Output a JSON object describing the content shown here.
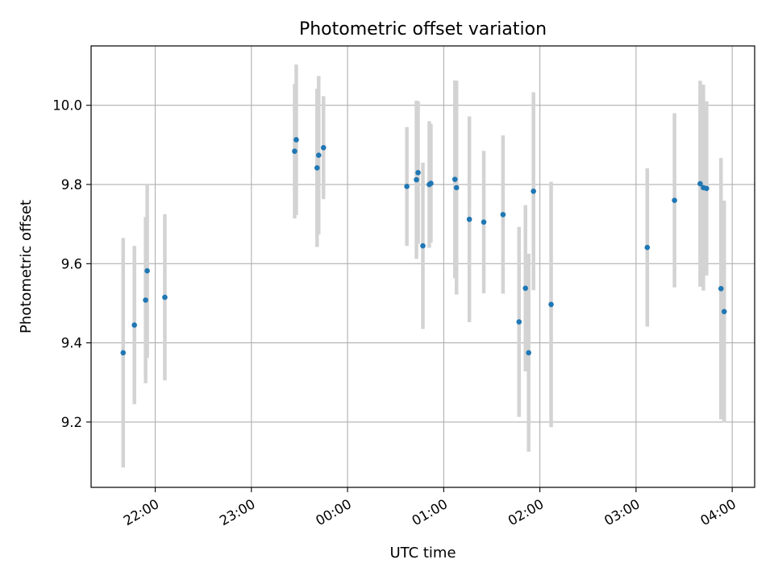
{
  "chart_data": {
    "type": "scatter",
    "title": "Photometric offset variation",
    "xlabel": "UTC time",
    "ylabel": "Photometric offset",
    "x_axis": "time",
    "x_range": [
      "21:20",
      "04:14"
    ],
    "ylim": [
      9.035,
      10.15
    ],
    "grid": true,
    "x_ticks": [
      "22:00",
      "23:00",
      "00:00",
      "01:00",
      "02:00",
      "03:00",
      "04:00"
    ],
    "y_ticks": [
      "9.2",
      "9.4",
      "9.6",
      "9.8",
      "10.0"
    ],
    "colors": {
      "point": "#1f77b4",
      "errorbar": "#d3d3d3",
      "grid": "#b0b0b0"
    },
    "points": [
      {
        "x": "21:40",
        "y": 9.375,
        "err": 0.29
      },
      {
        "x": "21:47",
        "y": 9.445,
        "err": 0.2
      },
      {
        "x": "21:54",
        "y": 9.508,
        "err": 0.21
      },
      {
        "x": "21:55",
        "y": 9.582,
        "err": 0.22
      },
      {
        "x": "22:06",
        "y": 9.515,
        "err": 0.21
      },
      {
        "x": "23:27",
        "y": 9.884,
        "err": 0.17
      },
      {
        "x": "23:28",
        "y": 9.913,
        "err": 0.19
      },
      {
        "x": "23:41",
        "y": 9.842,
        "err": 0.2
      },
      {
        "x": "23:42",
        "y": 9.874,
        "err": 0.2
      },
      {
        "x": "23:45",
        "y": 9.893,
        "err": 0.13
      },
      {
        "x": "00:37",
        "y": 9.795,
        "err": 0.15
      },
      {
        "x": "00:43",
        "y": 9.812,
        "err": 0.2
      },
      {
        "x": "00:44",
        "y": 9.83,
        "err": 0.18
      },
      {
        "x": "00:47",
        "y": 9.645,
        "err": 0.21
      },
      {
        "x": "00:51",
        "y": 9.8,
        "err": 0.16
      },
      {
        "x": "00:52",
        "y": 9.803,
        "err": 0.15
      },
      {
        "x": "01:07",
        "y": 9.813,
        "err": 0.25
      },
      {
        "x": "01:08",
        "y": 9.792,
        "err": 0.27
      },
      {
        "x": "01:16",
        "y": 9.712,
        "err": 0.26
      },
      {
        "x": "01:25",
        "y": 9.705,
        "err": 0.18
      },
      {
        "x": "01:37",
        "y": 9.724,
        "err": 0.2
      },
      {
        "x": "01:47",
        "y": 9.453,
        "err": 0.24
      },
      {
        "x": "01:51",
        "y": 9.538,
        "err": 0.21
      },
      {
        "x": "01:53",
        "y": 9.375,
        "err": 0.25
      },
      {
        "x": "01:56",
        "y": 9.783,
        "err": 0.25
      },
      {
        "x": "02:07",
        "y": 9.497,
        "err": 0.31
      },
      {
        "x": "03:07",
        "y": 9.641,
        "err": 0.2
      },
      {
        "x": "03:24",
        "y": 9.76,
        "err": 0.22
      },
      {
        "x": "03:40",
        "y": 9.802,
        "err": 0.26
      },
      {
        "x": "03:42",
        "y": 9.792,
        "err": 0.26
      },
      {
        "x": "03:44",
        "y": 9.79,
        "err": 0.22
      },
      {
        "x": "03:53",
        "y": 9.537,
        "err": 0.33
      },
      {
        "x": "03:55",
        "y": 9.479,
        "err": 0.28
      }
    ]
  }
}
